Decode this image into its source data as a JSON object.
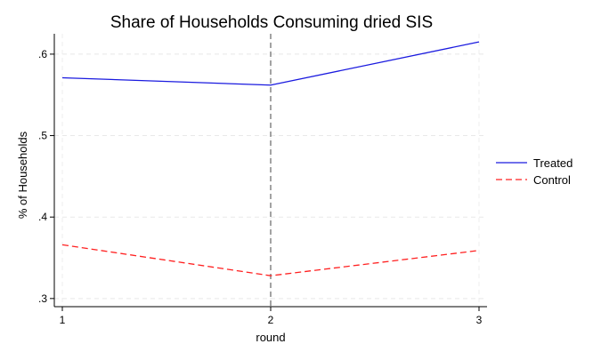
{
  "chart_data": {
    "type": "line",
    "title": "Share of Households Consuming dried SIS",
    "xlabel": "round",
    "ylabel": "% of Households",
    "x": [
      1,
      2,
      3
    ],
    "x_ticks": [
      "1",
      "2",
      "3"
    ],
    "y_ticks": [
      ".3",
      ".4",
      ".5",
      ".6"
    ],
    "y_tick_values": [
      0.3,
      0.4,
      0.5,
      0.6
    ],
    "xlim": [
      1,
      3
    ],
    "ylim": [
      0.29,
      0.625
    ],
    "grid": true,
    "vertical_reference_line": 2,
    "legend_position": "right",
    "series": [
      {
        "name": "Treated",
        "values": [
          0.571,
          0.562,
          0.615
        ],
        "color": "#1a1adf",
        "style": "solid"
      },
      {
        "name": "Control",
        "values": [
          0.366,
          0.328,
          0.359
        ],
        "color": "#ff2020",
        "style": "dashed"
      }
    ]
  }
}
